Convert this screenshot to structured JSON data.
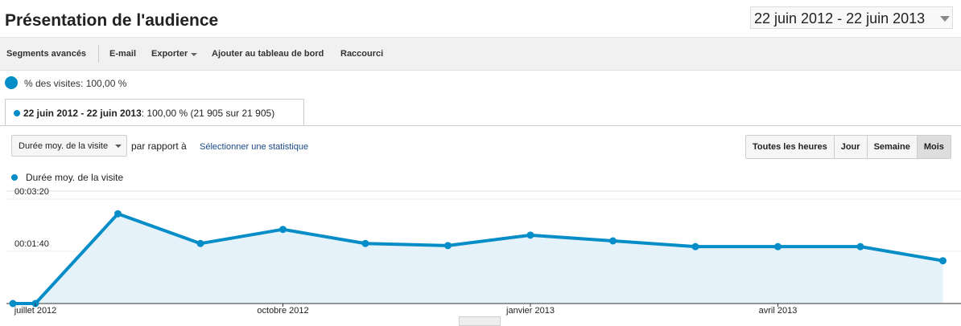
{
  "header": {
    "title": "Présentation de l'audience",
    "date_range": "22 juin 2012 - 22 juin 2013"
  },
  "toolbar": [
    "Segments avancés",
    "E-mail",
    "Exporter",
    "Ajouter au tableau de bord",
    "Raccourci"
  ],
  "segment": {
    "share": "% des visites: 100,00 %",
    "range": "22 juin 2012 - 22 juin 2013",
    "stats": ": 100,00 % (21 905 sur 21 905)"
  },
  "controls": {
    "metric": "Durée moy. de la visite",
    "compare": "par rapport à",
    "select": "Sélectionner une statistique",
    "granularity": [
      "Toutes les heures",
      "Jour",
      "Semaine",
      "Mois"
    ]
  },
  "chart_data": {
    "type": "area",
    "categories": [
      null,
      "juillet 2012",
      null,
      null,
      "octobre 2012",
      null,
      null,
      "janvier 2013",
      null,
      null,
      "avril 2013",
      null,
      null
    ],
    "series": [
      {
        "name": "Durée moy. de la visite",
        "color": "#058dc7",
        "values": [
          0,
          0,
          172,
          115,
          142,
          115,
          111,
          131,
          120,
          109,
          109,
          109,
          82
        ]
      }
    ],
    "ylim": [
      0,
      200
    ],
    "yticks": [
      {
        "value": 100,
        "label": "00:01:40"
      },
      {
        "value": 200,
        "label": "00:03:20"
      }
    ],
    "grid": true
  }
}
